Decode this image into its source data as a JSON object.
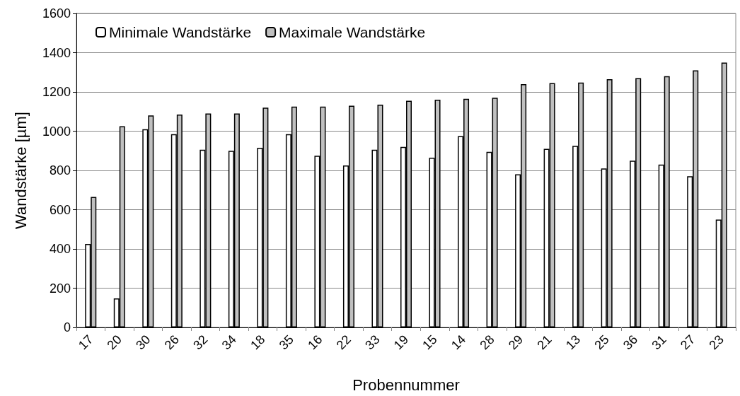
{
  "chart_data": {
    "type": "bar",
    "xlabel": "Probennummer",
    "ylabel": "Wandstärke [µm]",
    "categories": [
      "17",
      "20",
      "30",
      "26",
      "32",
      "34",
      "18",
      "35",
      "16",
      "22",
      "33",
      "19",
      "15",
      "14",
      "28",
      "29",
      "21",
      "13",
      "25",
      "36",
      "31",
      "27",
      "23"
    ],
    "series": [
      {
        "name": "Minimale Wandstärke",
        "color": "#ffffff",
        "values": [
          425,
          148,
          1010,
          985,
          905,
          900,
          915,
          985,
          875,
          825,
          905,
          920,
          865,
          975,
          895,
          780,
          910,
          925,
          810,
          850,
          830,
          770,
          550
        ]
      },
      {
        "name": "Maximale Wandstärke",
        "color": "#c0c0c0",
        "values": [
          665,
          1025,
          1080,
          1085,
          1090,
          1090,
          1120,
          1125,
          1125,
          1130,
          1135,
          1155,
          1160,
          1165,
          1170,
          1240,
          1245,
          1248,
          1265,
          1270,
          1280,
          1310,
          1350
        ]
      }
    ],
    "ylim": [
      0,
      1600
    ],
    "yticks": [
      0,
      200,
      400,
      600,
      800,
      1000,
      1200,
      1400,
      1600
    ],
    "grid": "y",
    "legend": "top left"
  }
}
